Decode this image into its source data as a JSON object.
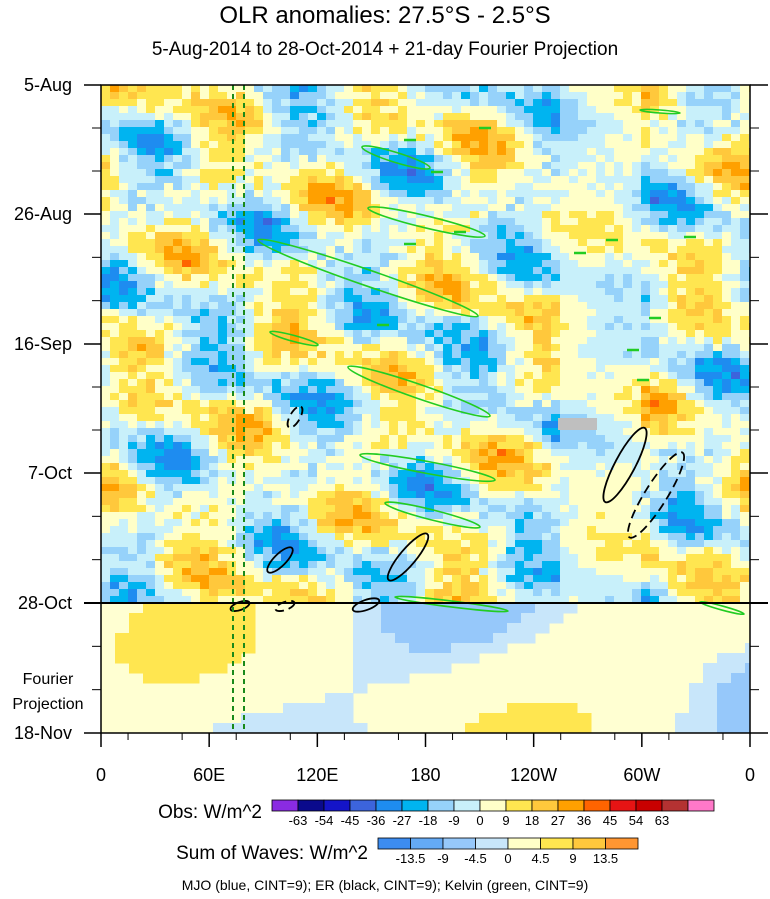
{
  "chart_data": {
    "type": "heatmap",
    "title": "OLR anomalies: 27.5°S - 2.5°S",
    "subtitle": "5-Aug-2014 to 28-Oct-2014 + 21-day Fourier Projection",
    "x_tick_labels": [
      "0",
      "60E",
      "120E",
      "180",
      "120W",
      "60W",
      "0"
    ],
    "y_tick_labels": [
      "5-Aug",
      "26-Aug",
      "16-Sep",
      "7-Oct",
      "28-Oct",
      "18-Nov"
    ],
    "projection_label": "Fourier\nProjection",
    "obs_legend": {
      "label": "Obs: W/m^2",
      "levels": [
        "-63",
        "-54",
        "-45",
        "-36",
        "-27",
        "-18",
        "-9",
        "0",
        "9",
        "18",
        "27",
        "36",
        "45",
        "54",
        "63"
      ],
      "colors": [
        "#8a2be2",
        "#0a0a8c",
        "#1414c8",
        "#3c64dc",
        "#1e8cf0",
        "#00b4f0",
        "#96d2fa",
        "#c8f0fa",
        "#ffffc8",
        "#ffe650",
        "#ffc83c",
        "#ffa000",
        "#ff6400",
        "#e61414",
        "#c80000",
        "#b43232",
        "#ff78c8"
      ]
    },
    "waves_legend": {
      "label": "Sum of Waves: W/m^2",
      "levels": [
        "-13.5",
        "-9",
        "-4.5",
        "0",
        "4.5",
        "9",
        "13.5"
      ],
      "colors": [
        "#3c8cf0",
        "#64aaf5",
        "#96c8fa",
        "#c8e6fa",
        "#ffffc8",
        "#ffe650",
        "#ffc83c",
        "#ff9632"
      ]
    },
    "contour_note": "MJO (blue, CINT=9); ER (black, CINT=9); Kelvin (green, CINT=9)",
    "colors": {
      "kelvin": "#22cc22",
      "er": "#000000",
      "mjo": "#1a1aff",
      "mjo_reference": "#1a8a1a"
    }
  }
}
